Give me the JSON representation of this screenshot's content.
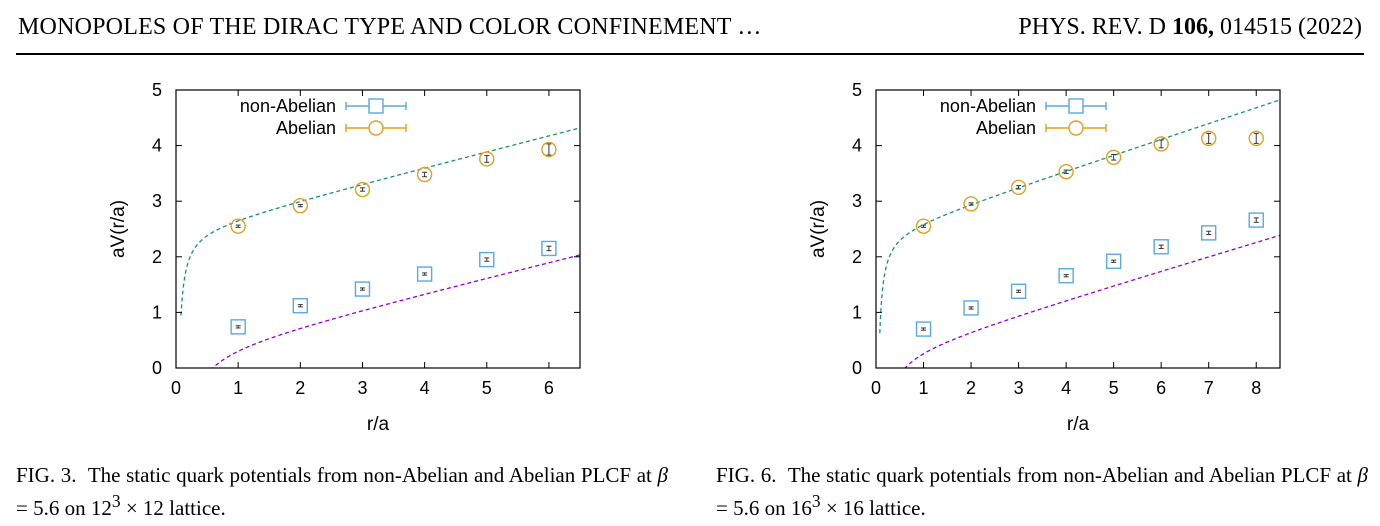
{
  "header": {
    "running_title": "MONOPOLES OF THE DIRAC TYPE AND COLOR CONFINEMENT …",
    "journal_prefix": "PHYS. REV. D ",
    "volume": "106,",
    "article_year": " 014515 (2022)"
  },
  "figures": [
    {
      "caption": {
        "label": "FIG. 3.",
        "text_before_beta": "The static quark potentials from non-Abelian and Abelian PLCF at ",
        "beta_symbol": "β",
        "beta_value": " = 5.6 on 12",
        "exponent": "3",
        "lattice_tail": " × 12 lattice."
      }
    },
    {
      "caption": {
        "label": "FIG. 6.",
        "text_before_beta": "The static quark potentials from non-Abelian and Abelian PLCF at ",
        "beta_symbol": "β",
        "beta_value": " = 5.6 on 16",
        "exponent": "3",
        "lattice_tail": " × 16 lattice."
      }
    }
  ],
  "chart_data": [
    {
      "type": "scatter",
      "xlabel": "r/a",
      "ylabel": "aV(r/a)",
      "xlim": [
        0,
        6.5
      ],
      "ylim": [
        0,
        5
      ],
      "xticks": [
        "0",
        "1",
        "2",
        "3",
        "4",
        "5",
        "6"
      ],
      "yticks": [
        "0",
        "1",
        "2",
        "3",
        "4",
        "5"
      ],
      "legend_position": "top-left",
      "series": [
        {
          "name": "non-Abelian",
          "marker": "square",
          "color": "#5aa9e0",
          "x": [
            1,
            2,
            3,
            4,
            5,
            6
          ],
          "y": [
            0.74,
            1.12,
            1.42,
            1.69,
            1.95,
            2.15
          ],
          "err": [
            0.02,
            0.02,
            0.02,
            0.02,
            0.03,
            0.04
          ],
          "fit": {
            "color": "#9400d3",
            "V0": 0.3,
            "alpha": 0.273,
            "sigma": 0.273
          }
        },
        {
          "name": "Abelian",
          "marker": "circle",
          "color": "#e0a020",
          "x": [
            1,
            2,
            3,
            4,
            5,
            6
          ],
          "y": [
            2.55,
            2.92,
            3.21,
            3.48,
            3.76,
            3.93
          ],
          "err": [
            0.02,
            0.02,
            0.03,
            0.04,
            0.06,
            0.1
          ],
          "fit": {
            "color": "#1e9070",
            "V0": 2.485,
            "alpha": 0.125,
            "sigma": 0.285
          }
        }
      ]
    },
    {
      "type": "scatter",
      "xlabel": "r/a",
      "ylabel": "aV(r/a)",
      "xlim": [
        0,
        8.5
      ],
      "ylim": [
        0,
        5
      ],
      "xticks": [
        "0",
        "1",
        "2",
        "3",
        "4",
        "5",
        "6",
        "7",
        "8"
      ],
      "yticks": [
        "0",
        "1",
        "2",
        "3",
        "4",
        "5"
      ],
      "legend_position": "top-left",
      "series": [
        {
          "name": "non-Abelian",
          "marker": "square",
          "color": "#5aa9e0",
          "x": [
            1,
            2,
            3,
            4,
            5,
            6,
            7,
            8
          ],
          "y": [
            0.7,
            1.08,
            1.38,
            1.66,
            1.92,
            2.18,
            2.43,
            2.66
          ],
          "err": [
            0.02,
            0.02,
            0.02,
            0.02,
            0.02,
            0.03,
            0.03,
            0.04
          ],
          "fit": {
            "color": "#9400d3",
            "V0": 0.248,
            "alpha": 0.247,
            "sigma": 0.255
          }
        },
        {
          "name": "Abelian",
          "marker": "circle",
          "color": "#e0a020",
          "x": [
            1,
            2,
            3,
            4,
            5,
            6,
            7,
            8
          ],
          "y": [
            2.55,
            2.95,
            3.25,
            3.53,
            3.79,
            4.03,
            4.13,
            4.13
          ],
          "err": [
            0.02,
            0.02,
            0.03,
            0.03,
            0.05,
            0.07,
            0.09,
            0.09
          ],
          "fit": {
            "color": "#1e9070",
            "V0": 2.443,
            "alpha": 0.147,
            "sigma": 0.282
          }
        }
      ]
    }
  ]
}
